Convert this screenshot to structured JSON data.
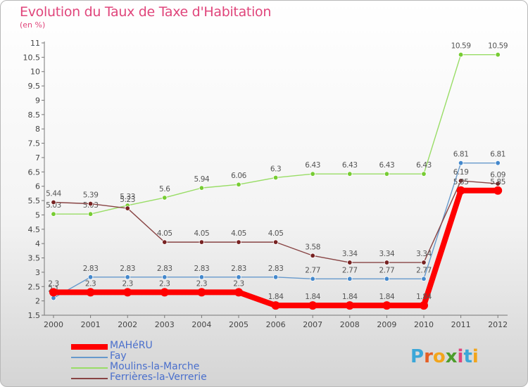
{
  "header": {
    "title": "Evolution du Taux de Taxe d'Habitation",
    "subtitle": "(en %)"
  },
  "logo": {
    "letters": [
      "P",
      "r",
      "o",
      "x",
      "i",
      "t",
      "i"
    ],
    "colors": [
      "#3ba7d8",
      "#e65f24",
      "#f2a51b",
      "#4d9d2b",
      "#e0457b",
      "#3ba7d8",
      "#f2a51b"
    ]
  },
  "chart_data": {
    "type": "line",
    "title": "Evolution du Taux de Taxe d'Habitation",
    "subtitle": "(en %)",
    "xlabel": "",
    "ylabel": "",
    "x": [
      "2000",
      "2001",
      "2002",
      "2003",
      "2004",
      "2005",
      "2006",
      "2007",
      "2008",
      "2009",
      "2010",
      "2011",
      "2012"
    ],
    "ylim": [
      1.5,
      11
    ],
    "yticks": [
      1.5,
      2,
      2.5,
      3,
      3.5,
      4,
      4.5,
      5,
      5.5,
      6,
      6.5,
      7,
      7.5,
      8,
      8.5,
      9,
      9.5,
      10,
      10.5,
      11
    ],
    "ytick_labels": [
      "1.5",
      "2",
      "2.5",
      "3",
      "3.5",
      "4",
      "4.5",
      "5",
      "5.5",
      "6",
      "6.5",
      "7",
      "7.5",
      "8",
      "8.5",
      "9",
      "9.5",
      "10",
      "10.5",
      "11"
    ],
    "grid": false,
    "legend_position": "bottom-left",
    "series": [
      {
        "name": "Moulins-la-Marche",
        "color": "#99dd66",
        "point_color": "#77cc33",
        "values": [
          5.03,
          5.03,
          5.33,
          5.6,
          5.94,
          6.06,
          6.3,
          6.43,
          6.43,
          6.43,
          6.43,
          10.59,
          10.59
        ],
        "labels": [
          "5.03",
          "5.03",
          "5.33",
          "5.6",
          "5.94",
          "6.06",
          "6.3",
          "6.43",
          "6.43",
          "6.43",
          "6.43",
          "10.59",
          "10.59"
        ]
      },
      {
        "name": "Fay",
        "color": "#6699cc",
        "point_color": "#4488cc",
        "values": [
          2.1,
          2.83,
          2.83,
          2.83,
          2.83,
          2.83,
          2.83,
          2.77,
          2.77,
          2.77,
          2.77,
          6.81,
          6.81
        ],
        "labels": [
          "2.1",
          "2.83",
          "2.83",
          "2.83",
          "2.83",
          "2.83",
          "2.83",
          "2.77",
          "2.77",
          "2.77",
          "2.77",
          "6.81",
          "6.81"
        ]
      },
      {
        "name": "Ferrières-la-Verrerie",
        "color": "#884444",
        "point_color": "#772222",
        "values": [
          5.44,
          5.39,
          5.23,
          4.05,
          4.05,
          4.05,
          4.05,
          3.58,
          3.34,
          3.34,
          3.34,
          6.19,
          6.09
        ],
        "labels": [
          "5.44",
          "5.39",
          "5.23",
          "4.05",
          "4.05",
          "4.05",
          "4.05",
          "3.58",
          "3.34",
          "3.34",
          "3.34",
          "6.19",
          "6.09"
        ]
      },
      {
        "name": "MAHéRU",
        "color": "#ff0000",
        "point_color": "#ff0000",
        "values": [
          2.3,
          2.3,
          2.3,
          2.3,
          2.3,
          2.3,
          1.84,
          1.84,
          1.84,
          1.84,
          1.84,
          5.85,
          5.85
        ],
        "labels": [
          "2.3",
          "2.3",
          "2.3",
          "2.3",
          "2.3",
          "2.3",
          "1.84",
          "1.84",
          "1.84",
          "1.84",
          "1.84",
          "5.85",
          "5.85"
        ]
      }
    ],
    "legend": [
      {
        "name": "MAHéRU",
        "color": "#ff0000",
        "label_color": "#4a6fcc"
      },
      {
        "name": "Fay",
        "color": "#6699cc",
        "label_color": "#4a6fcc"
      },
      {
        "name": "Moulins-la-Marche",
        "color": "#99dd66",
        "label_color": "#4a6fcc"
      },
      {
        "name": "Ferrières-la-Verrerie",
        "color": "#884444",
        "label_color": "#4a6fcc"
      }
    ]
  }
}
